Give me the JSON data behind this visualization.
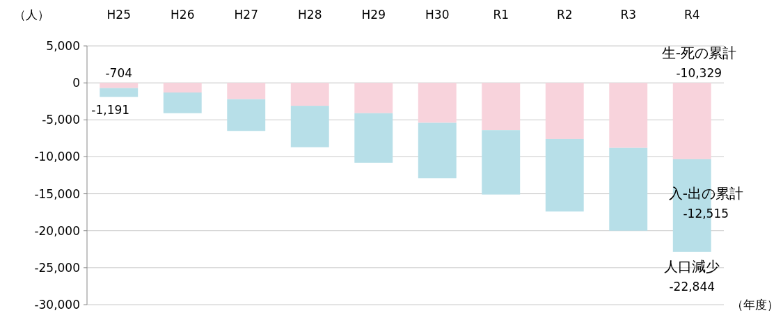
{
  "chart_data": {
    "type": "bar",
    "stacked": true,
    "xlabel": "（年度）",
    "ylabel": "（人）",
    "categories": [
      "H25",
      "H26",
      "H27",
      "H28",
      "H29",
      "H30",
      "R1",
      "R2",
      "R3",
      "R4"
    ],
    "series": [
      {
        "name": "生-死の累計",
        "color": "#f8d3dc",
        "values": [
          -704,
          -1300,
          -2200,
          -3100,
          -4100,
          -5400,
          -6400,
          -7600,
          -8800,
          -10329
        ],
        "value_labels": [
          "-704",
          null,
          null,
          null,
          null,
          null,
          null,
          null,
          null,
          "-10,329"
        ]
      },
      {
        "name": "入-出の累計",
        "color": "#b7dfe8",
        "values": [
          -1191,
          -2800,
          -4300,
          -5600,
          -6700,
          -7500,
          -8700,
          -9800,
          -11200,
          -12515
        ],
        "value_labels": [
          "-1,191",
          null,
          null,
          null,
          null,
          null,
          null,
          null,
          null,
          "-12,515"
        ]
      }
    ],
    "ylim": [
      -30000,
      5000
    ],
    "yticks": [
      {
        "value": 5000,
        "label": "5,000"
      },
      0,
      {
        "value": -5000,
        "label": "-5,000"
      },
      {
        "value": -10000,
        "label": "-10,000"
      },
      {
        "value": -15000,
        "label": "-15,000"
      },
      {
        "value": -20000,
        "label": "-20,000"
      },
      {
        "value": -25000,
        "label": "-25,000"
      },
      {
        "value": -30000,
        "label": "-30,000"
      }
    ],
    "grid": "y",
    "annotations": [
      {
        "text": "人口減少\n-22,844",
        "x": "R4",
        "y": -22844
      }
    ]
  }
}
